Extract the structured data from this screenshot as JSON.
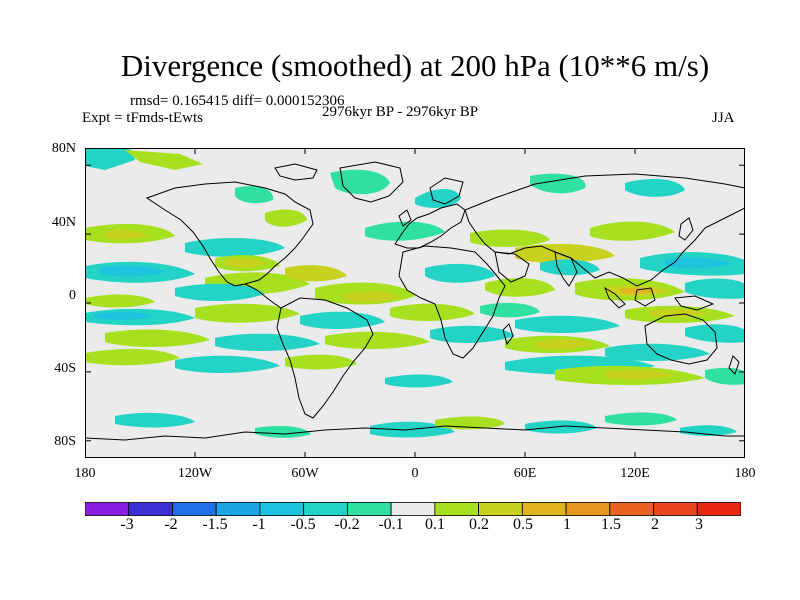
{
  "title": "Divergence (smoothed) at 200 hPa (10**6 m/s)",
  "stats": "rmsd= 0.165415 diff= 0.000152306",
  "experiment": "Expt = tFmds-tEwts",
  "period": "2976kyr BP - 2976kyr BP",
  "season": "JJA",
  "map": {
    "projection": "cylindrical equidistant",
    "lon_range": [
      -180,
      180
    ],
    "lat_range": [
      -90,
      90
    ],
    "lat_ticks": [
      "80N",
      "40N",
      "0",
      "40S",
      "80S"
    ],
    "lon_ticks": [
      "180",
      "120W",
      "60W",
      "0",
      "60E",
      "120E",
      "180"
    ],
    "background_color": "#ebebeb",
    "coastline_color": "#000000"
  },
  "colorbar": {
    "labels": [
      "-3",
      "-2",
      "-1.5",
      "-1",
      "-0.5",
      "-0.2",
      "-0.1",
      "0.1",
      "0.2",
      "0.5",
      "1",
      "1.5",
      "2",
      "3"
    ],
    "colors": [
      "#8a1ee0",
      "#3b2fd6",
      "#1f6fe8",
      "#1aa6e6",
      "#1ec3e0",
      "#22d3c6",
      "#2fe0a0",
      "#ebebeb",
      "#a6e01e",
      "#c8d21e",
      "#e0b41e",
      "#e6961e",
      "#e8641e",
      "#e8461e",
      "#e62814"
    ]
  }
}
